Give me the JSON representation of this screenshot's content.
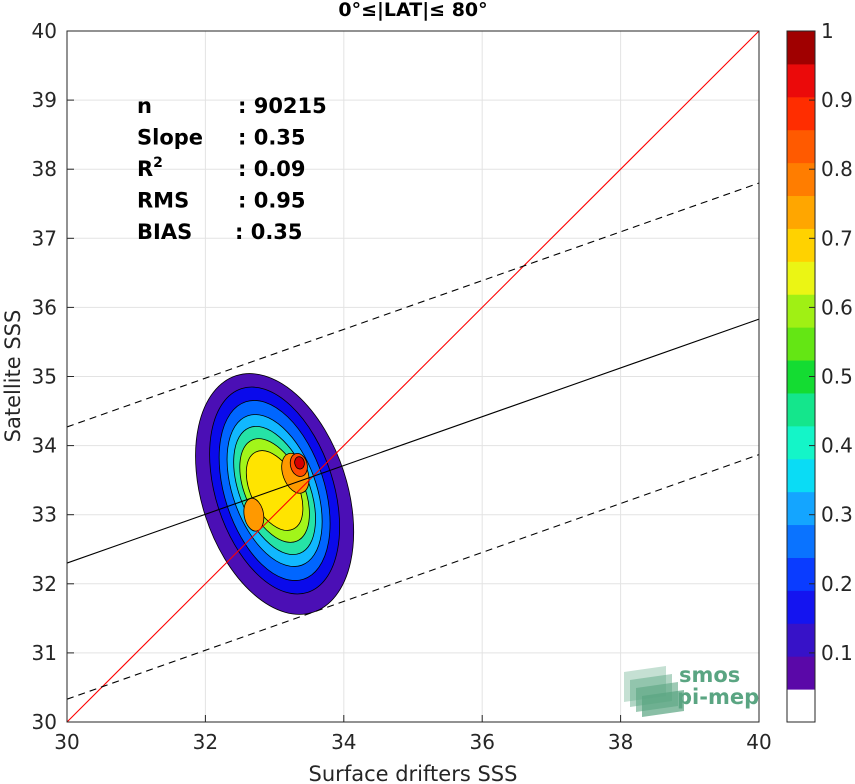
{
  "chart_data": {
    "type": "scatter",
    "subtype": "density-contour",
    "title": "0°≤|LAT|≤ 80°",
    "xlabel": "Surface drifters SSS",
    "ylabel": "Satellite SSS",
    "xlim": [
      30,
      40
    ],
    "ylim": [
      30,
      40
    ],
    "xticks": [
      30,
      32,
      34,
      36,
      38,
      40
    ],
    "yticks": [
      30,
      31,
      32,
      33,
      34,
      35,
      36,
      37,
      38,
      39,
      40
    ],
    "grid": true,
    "stats": [
      {
        "name": "n",
        "value": ": 90215"
      },
      {
        "name": "Slope",
        "value": ": 0.35"
      },
      {
        "name": "R",
        "sup": "2",
        "value": ": 0.09"
      },
      {
        "name": "RMS",
        "value": ": 0.95"
      },
      {
        "name": "BIAS",
        "value": ": 0.35"
      }
    ],
    "lines": [
      {
        "name": "one-to-one",
        "color": "#ff0000",
        "dash": "solid",
        "points": [
          [
            30,
            30
          ],
          [
            40,
            40
          ]
        ]
      },
      {
        "name": "regression",
        "color": "#000000",
        "dash": "solid",
        "points": [
          [
            30,
            32.3
          ],
          [
            40,
            35.83
          ]
        ]
      },
      {
        "name": "upper-bound",
        "color": "#000000",
        "dash": "dashed",
        "points": [
          [
            30,
            34.27
          ],
          [
            40,
            37.8
          ]
        ]
      },
      {
        "name": "lower-bound",
        "color": "#000000",
        "dash": "dashed",
        "points": [
          [
            30,
            30.33
          ],
          [
            40,
            33.87
          ]
        ]
      }
    ],
    "contours": [
      {
        "level": 0.05,
        "color": "#4b0fb5",
        "center": [
          33.0,
          33.3
        ],
        "rx": 1.05,
        "ry": 1.8,
        "rot": -18
      },
      {
        "level": 0.15,
        "color": "#0a0aeb",
        "center": [
          33.0,
          33.35
        ],
        "rx": 0.85,
        "ry": 1.55,
        "rot": -18
      },
      {
        "level": 0.25,
        "color": "#0066ff",
        "center": [
          33.0,
          33.35
        ],
        "rx": 0.72,
        "ry": 1.35,
        "rot": -18
      },
      {
        "level": 0.35,
        "color": "#11b8ff",
        "center": [
          33.0,
          33.35
        ],
        "rx": 0.6,
        "ry": 1.15,
        "rot": -20
      },
      {
        "level": 0.45,
        "color": "#26e3a6",
        "center": [
          33.0,
          33.35
        ],
        "rx": 0.5,
        "ry": 0.98,
        "rot": -22
      },
      {
        "level": 0.55,
        "color": "#a2f51a",
        "center": [
          33.0,
          33.35
        ],
        "rx": 0.42,
        "ry": 0.8,
        "rot": -24
      },
      {
        "level": 0.65,
        "color": "#ffe400",
        "center": [
          33.0,
          33.35
        ],
        "rx": 0.34,
        "ry": 0.62,
        "rot": -26
      },
      {
        "level": 0.75,
        "color": "#ff9900",
        "center": [
          33.3,
          33.6
        ],
        "rx": 0.18,
        "ry": 0.3,
        "rot": -20
      },
      {
        "level": 0.75,
        "color": "#ff9900",
        "center": [
          32.7,
          33.0
        ],
        "rx": 0.14,
        "ry": 0.24,
        "rot": -10
      },
      {
        "level": 0.85,
        "color": "#ff4a00",
        "center": [
          33.35,
          33.72
        ],
        "rx": 0.12,
        "ry": 0.17,
        "rot": -15
      },
      {
        "level": 0.95,
        "color": "#d40000",
        "center": [
          33.36,
          33.75
        ],
        "rx": 0.07,
        "ry": 0.09,
        "rot": -10
      }
    ],
    "colorbar": {
      "range": [
        0,
        1
      ],
      "ticks": [
        "0.1",
        "0.2",
        "0.3",
        "0.4",
        "0.5",
        "0.6",
        "0.7",
        "0.8",
        "0.9",
        "1"
      ],
      "tick_values": [
        0.1,
        0.2,
        0.3,
        0.4,
        0.5,
        0.6,
        0.7,
        0.8,
        0.9,
        1.0
      ],
      "colors": [
        "#ffffff",
        "#5a08a8",
        "#3712c8",
        "#1414f0",
        "#0a3cff",
        "#0a73ff",
        "#14a5ff",
        "#0adcf5",
        "#14f5c8",
        "#14e68c",
        "#14dc32",
        "#64e614",
        "#a0f014",
        "#ebf514",
        "#ffd200",
        "#ffa600",
        "#ff7d00",
        "#ff5a00",
        "#ff2d00",
        "#eb0a0a",
        "#a00000"
      ]
    }
  },
  "logo": {
    "line1": "smos",
    "line2": "pi-mep",
    "color": "#5aa582"
  }
}
